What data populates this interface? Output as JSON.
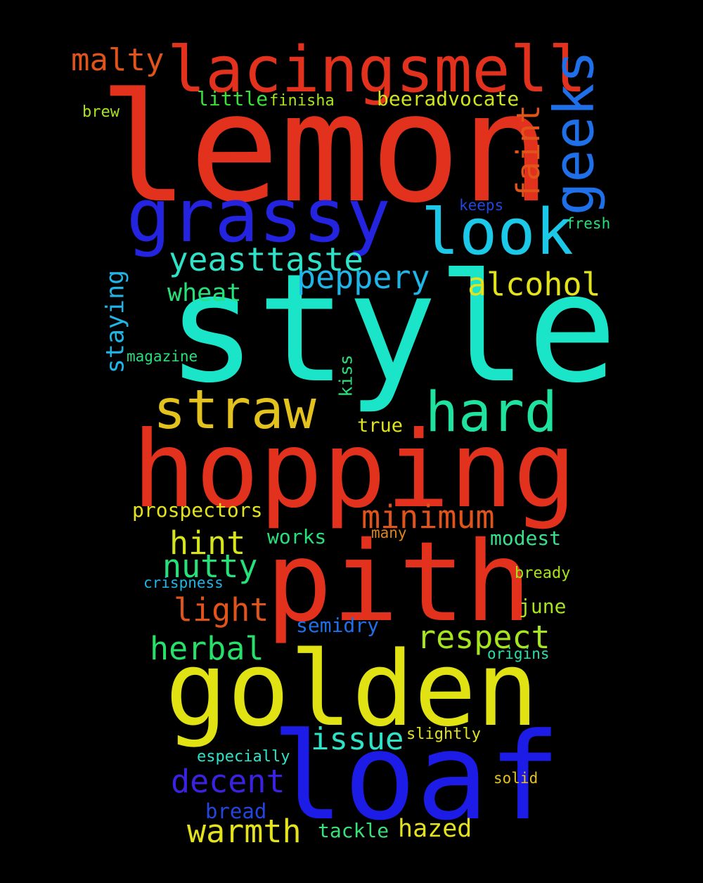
{
  "words": [
    {
      "text": "lemon",
      "color": "#e2311d"
    },
    {
      "text": "style",
      "color": "#1be5c9"
    },
    {
      "text": "hopping",
      "color": "#e2311d"
    },
    {
      "text": "pith",
      "color": "#e2311d"
    },
    {
      "text": "golden",
      "color": "#e1e213"
    },
    {
      "text": "loaf",
      "color": "#1c1ce6"
    },
    {
      "text": "lacingsmell",
      "color": "#e2311d"
    },
    {
      "text": "grassy",
      "color": "#2323e0"
    },
    {
      "text": "look",
      "color": "#1bc8e8"
    },
    {
      "text": "geeks",
      "color": "#1f6fe8"
    },
    {
      "text": "straw",
      "color": "#e3c21d"
    },
    {
      "text": "hard",
      "color": "#1ee29d"
    },
    {
      "text": "malty",
      "color": "#e0541c"
    },
    {
      "text": "faint",
      "color": "#e0541c"
    },
    {
      "text": "yeasttaste",
      "color": "#2ee2c8"
    },
    {
      "text": "peppery",
      "color": "#1fb5e6"
    },
    {
      "text": "alcohol",
      "color": "#e2e21d"
    },
    {
      "text": "wheat",
      "color": "#26e07a"
    },
    {
      "text": "staying",
      "color": "#1fb5e6"
    },
    {
      "text": "minimum",
      "color": "#e0541c"
    },
    {
      "text": "hint",
      "color": "#d5e41d"
    },
    {
      "text": "nutty",
      "color": "#26e07a"
    },
    {
      "text": "light",
      "color": "#e0541c"
    },
    {
      "text": "herbal",
      "color": "#26e06a"
    },
    {
      "text": "respect",
      "color": "#a6e51d"
    },
    {
      "text": "issue",
      "color": "#2ee2c8"
    },
    {
      "text": "decent",
      "color": "#3a23e0"
    },
    {
      "text": "warmth",
      "color": "#e3e21d"
    },
    {
      "text": "hazed",
      "color": "#e3e21d"
    },
    {
      "text": "bread",
      "color": "#2346e0"
    },
    {
      "text": "little",
      "color": "#39e03a"
    },
    {
      "text": "finisha",
      "color": "#a6e51d"
    },
    {
      "text": "beeradvocate",
      "color": "#cde41d"
    },
    {
      "text": "brew",
      "color": "#a6e51d"
    },
    {
      "text": "keeps",
      "color": "#2346e0"
    },
    {
      "text": "fresh",
      "color": "#26e07a"
    },
    {
      "text": "magazine",
      "color": "#26e07a"
    },
    {
      "text": "kiss",
      "color": "#26e07a"
    },
    {
      "text": "true",
      "color": "#e2e21d"
    },
    {
      "text": "prospectors",
      "color": "#e2e21d"
    },
    {
      "text": "works",
      "color": "#26e07a"
    },
    {
      "text": "many",
      "color": "#e0841c"
    },
    {
      "text": "modest",
      "color": "#39e08a"
    },
    {
      "text": "bready",
      "color": "#a6e51d"
    },
    {
      "text": "crispness",
      "color": "#1fb5e6"
    },
    {
      "text": "june",
      "color": "#a6e51d"
    },
    {
      "text": "semidry",
      "color": "#1f6fe8"
    },
    {
      "text": "origins",
      "color": "#26e0aa"
    },
    {
      "text": "slightly",
      "color": "#e2e21d"
    },
    {
      "text": "especially",
      "color": "#2ee2c8"
    },
    {
      "text": "solid",
      "color": "#e3c21d"
    },
    {
      "text": "tackle",
      "color": "#39e07a"
    }
  ]
}
